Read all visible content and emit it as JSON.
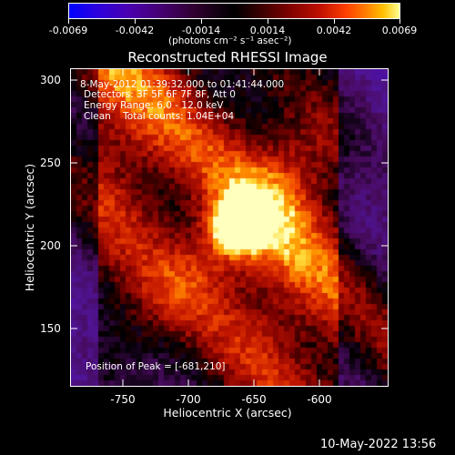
{
  "colorbar": {
    "tick_labels": [
      "-0.0069",
      "-0.0042",
      "-0.0014",
      "0.0014",
      "0.0042",
      "0.0069"
    ],
    "unit_label": "(photons cm⁻² s⁻¹ asec⁻²)"
  },
  "title": "Reconstructed RHESSI Image",
  "info": {
    "time_range": "8-May-2012 01:39:32.000 to 01:41:44.000",
    "detectors": "Detectors: 3F 5F 6F 7F 8F, Att 0",
    "energy": "Energy Range: 6.0 - 12.0 keV",
    "clean": "Clean    Total counts: 1.04E+04",
    "peak": "Position of Peak = [-681,210]"
  },
  "axes": {
    "xlabel": "Heliocentric X (arcsec)",
    "ylabel": "Heliocentric Y (arcsec)",
    "xticks": [
      "-750",
      "-700",
      "-650",
      "-600"
    ],
    "yticks": [
      "300",
      "250",
      "200",
      "150"
    ]
  },
  "footer": {
    "timestamp": "10-May-2022 13:56"
  },
  "colors": {
    "background": "#000000",
    "foreground": "#ffffff"
  }
}
